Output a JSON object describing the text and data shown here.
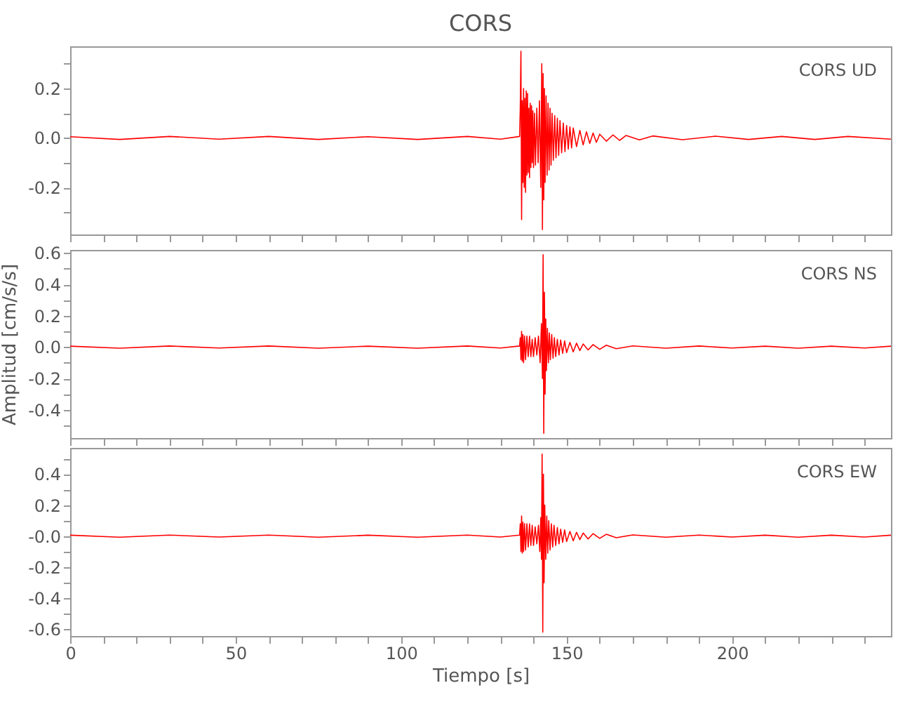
{
  "chart_data": [
    {
      "type": "line",
      "title": "CORS",
      "annotations": [
        "CORS   UD"
      ],
      "tick_labels": "y",
      "xlim": [
        0,
        248
      ],
      "ylim": [
        -0.39,
        0.37
      ],
      "xticks": [
        0,
        {
          "value": 10,
          "label": null
        },
        {
          "value": 20,
          "label": null
        },
        {
          "value": 30,
          "label": null
        },
        {
          "value": 40,
          "label": null
        },
        50,
        {
          "value": 60,
          "label": null
        },
        {
          "value": 70,
          "label": null
        },
        {
          "value": 80,
          "label": null
        },
        {
          "value": 90,
          "label": null
        },
        100,
        {
          "value": 110,
          "label": null
        },
        {
          "value": 120,
          "label": null
        },
        {
          "value": 130,
          "label": null
        },
        {
          "value": 140,
          "label": null
        },
        150,
        {
          "value": 160,
          "label": null
        },
        {
          "value": 170,
          "label": null
        },
        {
          "value": 180,
          "label": null
        },
        {
          "value": 190,
          "label": null
        },
        200,
        {
          "value": 210,
          "label": null
        },
        {
          "value": 220,
          "label": null
        },
        {
          "value": 230,
          "label": null
        },
        {
          "value": 240,
          "label": null
        }
      ],
      "yticks": [
        {
          "value": -0.3,
          "label": null
        },
        {
          "value": -0.2,
          "label": "-0.2"
        },
        {
          "value": -0.1,
          "label": null
        },
        {
          "value": 0,
          "label": "0.0"
        },
        {
          "value": 0.1,
          "label": null
        },
        {
          "value": 0.2,
          "label": "0.2"
        },
        {
          "value": 0.3,
          "label": null
        }
      ],
      "x": [
        0,
        15,
        30,
        45,
        60,
        75,
        90,
        105,
        120,
        130,
        135.8,
        136.0,
        136.2,
        136.4,
        136.6,
        136.8,
        137.0,
        137.2,
        137.4,
        137.6,
        137.8,
        138.0,
        138.2,
        138.4,
        138.6,
        138.8,
        139.0,
        139.2,
        139.4,
        139.6,
        139.8,
        140.0,
        140.3,
        140.6,
        141.0,
        141.4,
        141.8,
        142.2,
        142.5,
        142.7,
        142.9,
        143.1,
        143.3,
        143.5,
        143.8,
        144.1,
        144.4,
        144.7,
        145,
        145.3,
        145.6,
        146,
        146.4,
        146.8,
        147.2,
        147.6,
        148,
        148.5,
        149,
        149.5,
        150,
        150.5,
        151,
        151.5,
        152,
        153,
        154,
        155,
        156,
        157,
        158,
        159,
        160,
        162,
        164,
        166,
        168,
        172,
        176,
        185,
        195,
        205,
        215,
        225,
        235,
        248
      ],
      "series": [
        {
          "color": "#ff0000",
          "values": [
            0.005,
            -0.006,
            0.006,
            -0.005,
            0.006,
            -0.006,
            0.005,
            -0.006,
            0.006,
            -0.005,
            0.006,
            0.12,
            0.35,
            -0.33,
            0.15,
            -0.18,
            0.2,
            -0.2,
            0.16,
            -0.22,
            0.19,
            -0.15,
            0.18,
            -0.14,
            0.12,
            -0.16,
            0.14,
            -0.12,
            0.13,
            -0.1,
            0.11,
            -0.12,
            0.1,
            -0.11,
            0.12,
            -0.1,
            0.15,
            -0.2,
            0.3,
            -0.37,
            0.26,
            -0.25,
            0.2,
            -0.18,
            0.17,
            -0.15,
            0.14,
            -0.13,
            0.12,
            -0.11,
            0.1,
            -0.09,
            0.09,
            -0.08,
            0.08,
            -0.07,
            0.07,
            -0.06,
            0.06,
            -0.055,
            0.05,
            -0.045,
            0.045,
            -0.04,
            0.04,
            -0.035,
            0.03,
            -0.028,
            0.025,
            -0.022,
            0.02,
            -0.018,
            0.015,
            -0.013,
            0.012,
            -0.01,
            0.01,
            -0.008,
            0.008,
            -0.007,
            0.007,
            -0.006,
            0.006,
            -0.006,
            0.006,
            -0.005
          ]
        }
      ]
    },
    {
      "type": "line",
      "ylabel": "Amplitud  [cm/s/s]",
      "annotations": [
        "CORS   NS"
      ],
      "tick_labels": "y",
      "xlim": [
        0,
        248
      ],
      "ylim": [
        -0.58,
        0.62
      ],
      "xticks": [
        0,
        {
          "value": 10,
          "label": null
        },
        {
          "value": 20,
          "label": null
        },
        {
          "value": 30,
          "label": null
        },
        {
          "value": 40,
          "label": null
        },
        50,
        {
          "value": 60,
          "label": null
        },
        {
          "value": 70,
          "label": null
        },
        {
          "value": 80,
          "label": null
        },
        {
          "value": 90,
          "label": null
        },
        100,
        {
          "value": 110,
          "label": null
        },
        {
          "value": 120,
          "label": null
        },
        {
          "value": 130,
          "label": null
        },
        {
          "value": 140,
          "label": null
        },
        150,
        {
          "value": 160,
          "label": null
        },
        {
          "value": 170,
          "label": null
        },
        {
          "value": 180,
          "label": null
        },
        {
          "value": 190,
          "label": null
        },
        200,
        {
          "value": 210,
          "label": null
        },
        {
          "value": 220,
          "label": null
        },
        {
          "value": 230,
          "label": null
        },
        {
          "value": 240,
          "label": null
        }
      ],
      "yticks": [
        {
          "value": -0.5,
          "label": null
        },
        {
          "value": -0.4,
          "label": "-0.4"
        },
        {
          "value": -0.3,
          "label": null
        },
        {
          "value": -0.2,
          "label": "-0.2"
        },
        {
          "value": -0.1,
          "label": null
        },
        {
          "value": 0,
          "label": "0.0"
        },
        {
          "value": 0.1,
          "label": null
        },
        {
          "value": 0.2,
          "label": "0.2"
        },
        {
          "value": 0.3,
          "label": null
        },
        {
          "value": 0.4,
          "label": "0.4"
        },
        {
          "value": 0.5,
          "label": null
        },
        {
          "value": 0.6,
          "label": "0.6"
        }
      ],
      "x": [
        0,
        15,
        30,
        45,
        60,
        75,
        90,
        105,
        120,
        130,
        135.8,
        136.0,
        136.2,
        136.4,
        136.6,
        136.8,
        137,
        137.3,
        137.6,
        138,
        138.4,
        138.8,
        139.2,
        139.6,
        140,
        140.5,
        141,
        141.5,
        142,
        142.4,
        142.7,
        142.9,
        143.1,
        143.3,
        143.5,
        143.7,
        143.9,
        144.2,
        144.5,
        144.8,
        145.1,
        145.5,
        145.9,
        146.3,
        146.7,
        147.2,
        147.7,
        148.2,
        148.8,
        149.4,
        150,
        151,
        152,
        153,
        154,
        155,
        156.5,
        158,
        160,
        162,
        165,
        170,
        180,
        190,
        200,
        210,
        220,
        230,
        240,
        248
      ],
      "series": [
        {
          "color": "#ff0000",
          "values": [
            0.006,
            -0.007,
            0.007,
            -0.006,
            0.007,
            -0.007,
            0.006,
            -0.007,
            0.007,
            -0.006,
            0.007,
            0.06,
            -0.08,
            0.1,
            -0.09,
            0.08,
            -0.1,
            0.07,
            -0.08,
            0.07,
            -0.06,
            0.07,
            -0.06,
            0.05,
            -0.06,
            0.06,
            -0.05,
            0.07,
            -0.1,
            0.15,
            -0.2,
            0.59,
            -0.55,
            0.35,
            -0.3,
            0.18,
            -0.15,
            0.12,
            -0.1,
            0.09,
            -0.08,
            0.08,
            -0.07,
            0.06,
            -0.06,
            0.05,
            -0.05,
            0.045,
            -0.04,
            0.04,
            -0.035,
            0.03,
            -0.03,
            0.025,
            -0.022,
            0.02,
            -0.018,
            0.016,
            -0.014,
            0.012,
            -0.01,
            0.008,
            -0.007,
            0.007,
            -0.006,
            0.006,
            -0.007,
            0.006,
            -0.006,
            0.006
          ]
        }
      ]
    },
    {
      "type": "line",
      "xlabel": "Tiempo  [s]",
      "annotations": [
        "CORS   EW"
      ],
      "xlim": [
        0,
        248
      ],
      "ylim": [
        -0.645,
        0.57
      ],
      "xticks": [
        0,
        {
          "value": 10,
          "label": null
        },
        {
          "value": 20,
          "label": null
        },
        {
          "value": 30,
          "label": null
        },
        {
          "value": 40,
          "label": null
        },
        50,
        {
          "value": 60,
          "label": null
        },
        {
          "value": 70,
          "label": null
        },
        {
          "value": 80,
          "label": null
        },
        {
          "value": 90,
          "label": null
        },
        100,
        {
          "value": 110,
          "label": null
        },
        {
          "value": 120,
          "label": null
        },
        {
          "value": 130,
          "label": null
        },
        {
          "value": 140,
          "label": null
        },
        150,
        {
          "value": 160,
          "label": null
        },
        {
          "value": 170,
          "label": null
        },
        {
          "value": 180,
          "label": null
        },
        {
          "value": 190,
          "label": null
        },
        200,
        {
          "value": 210,
          "label": null
        },
        {
          "value": 220,
          "label": null
        },
        {
          "value": 230,
          "label": null
        },
        {
          "value": 240,
          "label": null
        }
      ],
      "yticks": [
        {
          "value": -0.6,
          "label": "-0.6"
        },
        {
          "value": -0.5,
          "label": null
        },
        {
          "value": -0.4,
          "label": "-0.4"
        },
        {
          "value": -0.3,
          "label": null
        },
        {
          "value": -0.2,
          "label": "-0.2"
        },
        {
          "value": -0.1,
          "label": null
        },
        {
          "value": 0,
          "label": "-0.0"
        },
        {
          "value": 0.1,
          "label": null
        },
        {
          "value": 0.2,
          "label": "0.2"
        },
        {
          "value": 0.3,
          "label": null
        },
        {
          "value": 0.4,
          "label": "0.4"
        },
        {
          "value": 0.5,
          "label": null
        }
      ],
      "x": [
        0,
        15,
        30,
        45,
        60,
        75,
        90,
        105,
        120,
        130,
        135.8,
        136.0,
        136.2,
        136.4,
        136.6,
        136.8,
        137,
        137.3,
        137.6,
        138,
        138.4,
        138.8,
        139.2,
        139.6,
        140,
        140.5,
        141,
        141.5,
        141.9,
        142.2,
        142.4,
        142.6,
        142.8,
        143,
        143.2,
        143.4,
        143.7,
        144,
        144.3,
        144.6,
        145,
        145.4,
        145.8,
        146.2,
        146.7,
        147.2,
        147.7,
        148.2,
        148.8,
        149.4,
        150,
        151,
        152,
        153,
        154,
        155,
        156.5,
        158,
        160,
        162,
        165,
        170,
        180,
        190,
        200,
        210,
        220,
        230,
        240,
        248
      ],
      "series": [
        {
          "color": "#ff0000",
          "values": [
            0.006,
            -0.007,
            0.007,
            -0.006,
            0.007,
            -0.007,
            0.006,
            -0.007,
            0.007,
            -0.006,
            0.007,
            0.08,
            -0.1,
            0.13,
            -0.11,
            0.09,
            -0.1,
            0.08,
            -0.09,
            0.08,
            -0.07,
            0.08,
            -0.06,
            0.07,
            -0.06,
            0.06,
            -0.05,
            0.07,
            -0.1,
            0.12,
            -0.15,
            0.53,
            -0.62,
            0.4,
            -0.3,
            0.2,
            -0.15,
            0.13,
            -0.11,
            0.1,
            -0.09,
            0.08,
            -0.07,
            0.07,
            -0.06,
            0.055,
            -0.05,
            0.045,
            -0.04,
            0.04,
            -0.035,
            0.03,
            -0.03,
            0.025,
            -0.022,
            0.02,
            -0.018,
            0.016,
            -0.014,
            0.012,
            -0.01,
            0.008,
            -0.007,
            0.007,
            -0.006,
            0.006,
            -0.007,
            0.006,
            -0.006,
            0.006
          ]
        }
      ]
    }
  ]
}
